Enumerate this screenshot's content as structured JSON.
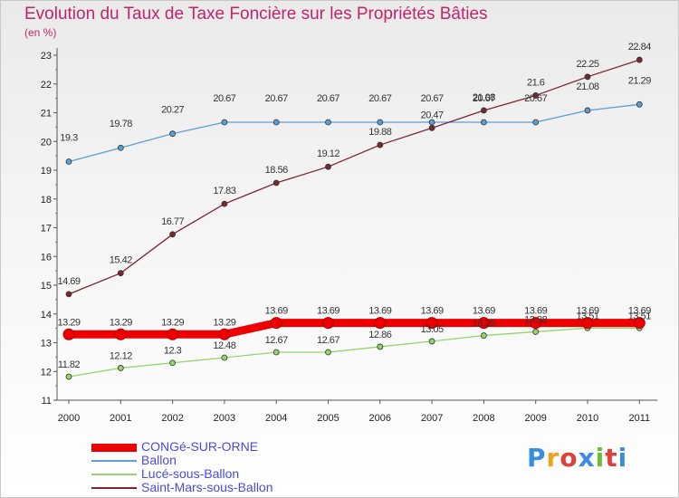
{
  "title": "Evolution du Taux de Taxe Foncière sur les Propriétés Bâties",
  "unit_label": "(en %)",
  "logo_text": "Proxiti",
  "logo_colors": [
    "#3a8de0",
    "#f2a020",
    "#e0403a",
    "#3a8de0",
    "#6abf3a",
    "#e0403a",
    "#3a8de0"
  ],
  "chart_data": {
    "type": "line",
    "title": "Evolution du Taux de Taxe Foncière sur les Propriétés Bâties",
    "ylabel": "(en %)",
    "xlabel": "",
    "x": [
      "2000",
      "2001",
      "2002",
      "2003",
      "2004",
      "2005",
      "2006",
      "2007",
      "2008",
      "2009",
      "2010",
      "2011"
    ],
    "ylim": [
      11,
      23
    ],
    "yticks": [
      "11",
      "12",
      "13",
      "14",
      "15",
      "16",
      "17",
      "18",
      "19",
      "20",
      "21",
      "22",
      "23"
    ],
    "grid": false,
    "legend_position": "bottom-left",
    "series": [
      {
        "name": "CONGé-SUR-ORNE",
        "color": "#ee0000",
        "values": [
          13.29,
          13.29,
          13.29,
          13.29,
          13.69,
          13.69,
          13.69,
          13.69,
          13.69,
          13.69,
          13.69,
          13.69
        ],
        "labels": [
          "13.29",
          "13.29",
          "13.29",
          "13.29",
          "13.69",
          "13.69",
          "13.69",
          "13.69",
          "13.69",
          "13.69",
          "13.69",
          "13.69"
        ]
      },
      {
        "name": "Ballon",
        "color": "#5b9fd6",
        "values": [
          19.3,
          19.78,
          20.27,
          20.67,
          20.67,
          20.67,
          20.67,
          20.67,
          20.67,
          20.67,
          21.08,
          21.29
        ],
        "labels": [
          "19.3",
          "19.78",
          "20.27",
          "20.67",
          "20.67",
          "20.67",
          "20.67",
          "20.67",
          "20.67",
          "20.67",
          "21.08",
          "21.29"
        ]
      },
      {
        "name": "Lucé-sous-Ballon",
        "color": "#96d46a",
        "values": [
          11.82,
          12.12,
          12.3,
          12.48,
          12.67,
          12.67,
          12.86,
          13.05,
          13.25,
          13.38,
          13.51,
          13.51
        ],
        "labels": [
          "11.82",
          "12.12",
          "12.3",
          "12.48",
          "12.67",
          "12.67",
          "12.86",
          "13.05",
          "13.25",
          "13.38",
          "13.51",
          "13.51"
        ]
      },
      {
        "name": "Saint-Mars-sous-Ballon",
        "color": "#7a2630",
        "values": [
          14.69,
          15.42,
          16.77,
          17.83,
          18.56,
          19.12,
          19.88,
          20.47,
          21.08,
          21.6,
          22.25,
          22.84
        ],
        "labels": [
          "14.69",
          "15.42",
          "16.77",
          "17.83",
          "18.56",
          "19.12",
          "19.88",
          "20.47",
          "21.08",
          "21.6",
          "22.25",
          "22.84"
        ]
      }
    ]
  }
}
